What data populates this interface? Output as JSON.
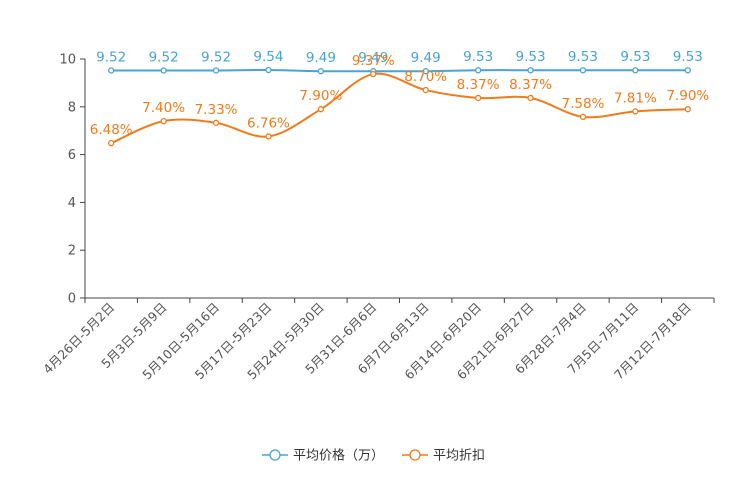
{
  "chart_data": {
    "type": "line",
    "categories": [
      "4月26日-5月2日",
      "5月3日-5月9日",
      "5月10日-5月16日",
      "5月17日-5月23日",
      "5月24日-5月30日",
      "5月31日-6月6日",
      "6月7日-6月13日",
      "6月14日-6月20日",
      "6月21日-6月27日",
      "6月28日-7月4日",
      "7月5日-7月11日",
      "7月12日-7月18日"
    ],
    "series": [
      {
        "name": "平均价格（万）",
        "color": "#4aa3d0",
        "values": [
          9.52,
          9.52,
          9.52,
          9.54,
          9.49,
          9.49,
          9.49,
          9.53,
          9.53,
          9.53,
          9.53,
          9.53
        ],
        "labels": [
          "9.52",
          "9.52",
          "9.52",
          "9.54",
          "9.49",
          "9.49",
          "9.49",
          "9.53",
          "9.53",
          "9.53",
          "9.53",
          "9.53"
        ]
      },
      {
        "name": "平均折扣",
        "color": "#f07b1d",
        "values": [
          6.48,
          7.4,
          7.33,
          6.76,
          7.9,
          9.37,
          8.7,
          8.37,
          8.37,
          7.58,
          7.81,
          7.9
        ],
        "labels": [
          "6.48%",
          "7.40%",
          "7.33%",
          "6.76%",
          "7.90%",
          "9.37%",
          "8.70%",
          "8.37%",
          "8.37%",
          "7.58%",
          "7.81%",
          "7.90%"
        ]
      }
    ],
    "ylim": [
      0,
      10
    ],
    "yticks": [
      "0",
      "2",
      "4",
      "6",
      "8",
      "10"
    ],
    "title": "",
    "xlabel": "",
    "ylabel": "",
    "grid": false,
    "legend_position": "bottom-center"
  }
}
